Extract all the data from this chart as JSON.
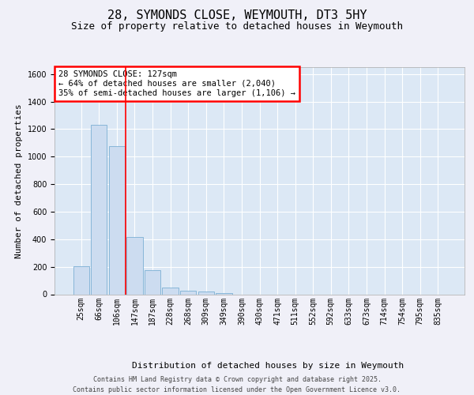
{
  "title_line1": "28, SYMONDS CLOSE, WEYMOUTH, DT3 5HY",
  "title_line2": "Size of property relative to detached houses in Weymouth",
  "xlabel": "Distribution of detached houses by size in Weymouth",
  "ylabel": "Number of detached properties",
  "categories": [
    "25sqm",
    "66sqm",
    "106sqm",
    "147sqm",
    "187sqm",
    "228sqm",
    "268sqm",
    "309sqm",
    "349sqm",
    "390sqm",
    "430sqm",
    "471sqm",
    "511sqm",
    "552sqm",
    "592sqm",
    "633sqm",
    "673sqm",
    "714sqm",
    "754sqm",
    "795sqm",
    "835sqm"
  ],
  "values": [
    205,
    1230,
    1075,
    415,
    175,
    50,
    25,
    20,
    8,
    0,
    0,
    0,
    0,
    0,
    0,
    0,
    0,
    0,
    0,
    0,
    0
  ],
  "bar_color": "#ccdcf0",
  "bar_edge_color": "#7bafd4",
  "ylim": [
    0,
    1650
  ],
  "yticks": [
    0,
    200,
    400,
    600,
    800,
    1000,
    1200,
    1400,
    1600
  ],
  "annotation_text": "28 SYMONDS CLOSE: 127sqm\n← 64% of detached houses are smaller (2,040)\n35% of semi-detached houses are larger (1,106) →",
  "red_line_x": 2.5,
  "plot_bg_color": "#dce8f5",
  "grid_color": "#ffffff",
  "fig_bg_color": "#f0f0f8",
  "footer_line1": "Contains HM Land Registry data © Crown copyright and database right 2025.",
  "footer_line2": "Contains public sector information licensed under the Open Government Licence v3.0.",
  "title_fontsize": 11,
  "subtitle_fontsize": 9,
  "ylabel_fontsize": 8,
  "xlabel_fontsize": 8,
  "tick_fontsize": 7,
  "annot_fontsize": 7.5,
  "footer_fontsize": 6
}
